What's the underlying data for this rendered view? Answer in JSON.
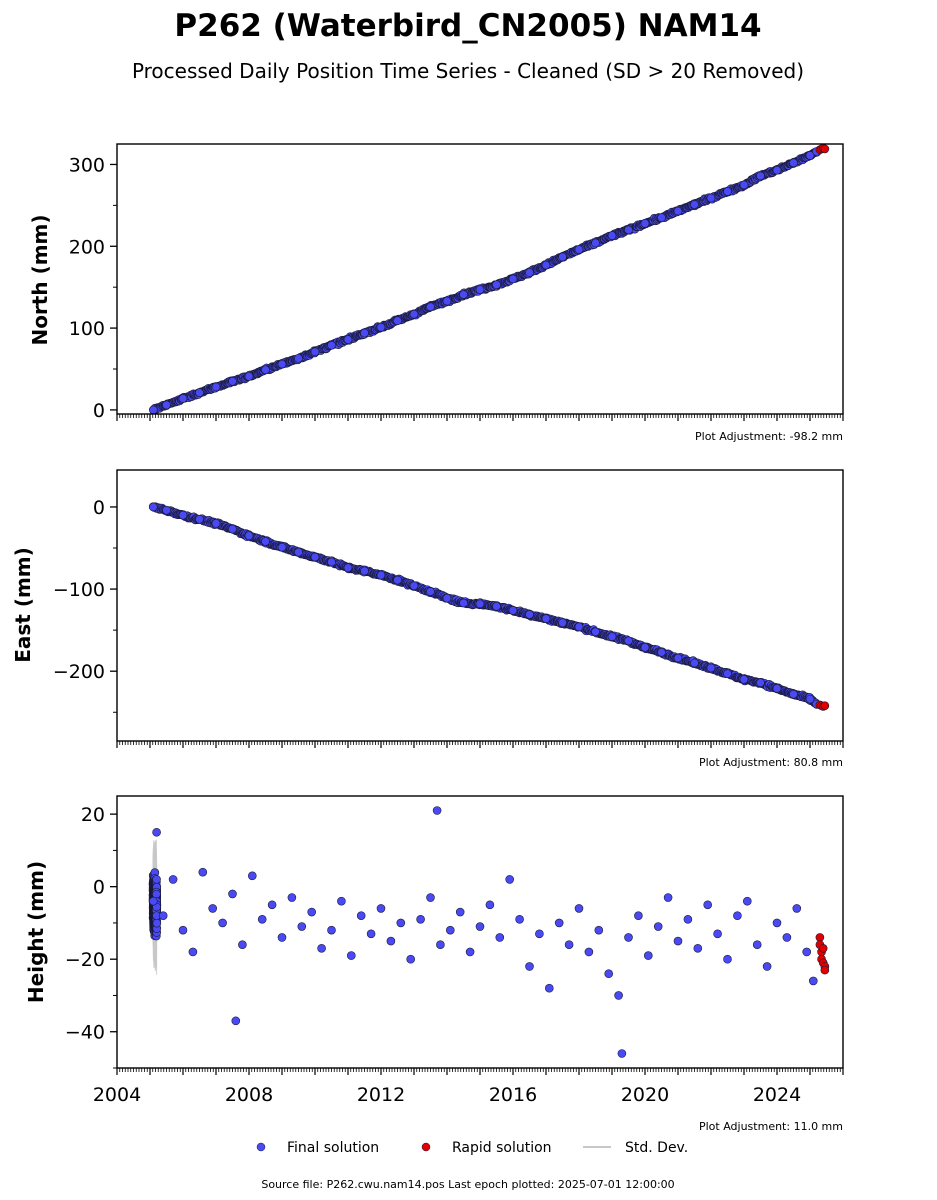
{
  "title": "P262 (Waterbird_CN2005) NAM14",
  "subtitle": "Processed Daily Position Time Series - Cleaned (SD > 20 Removed)",
  "legend": {
    "final_label": "Final solution",
    "rapid_label": "Rapid solution",
    "std_label": "Std. Dev."
  },
  "source_note": "Source file: P262.cwu.nam14.pos  Last epoch plotted: 2025-07-01 12:00:00",
  "colors": {
    "final": "#4a4af4",
    "rapid": "#e00000",
    "std": "#c8c8c8",
    "marker_edge": "#1a1a3a"
  },
  "chart_data": [
    {
      "type": "scatter",
      "panel": "north",
      "ylabel": "North (mm)",
      "adjustment_note": "Plot Adjustment: -98.2 mm",
      "xlim": [
        2004,
        2026
      ],
      "ylim": [
        -5,
        325
      ],
      "xticks": [
        2004,
        2008,
        2012,
        2016,
        2020,
        2024
      ],
      "xtick_labels": [
        "2004",
        "2008",
        "2012",
        "2016",
        "2020",
        "2024"
      ],
      "show_x_tick_labels": false,
      "yticks": [
        0,
        100,
        200,
        300
      ],
      "ytick_labels": [
        "0",
        "100",
        "200",
        "300"
      ],
      "series": [
        {
          "name": "Final solution",
          "x": [
            2005.1,
            2005.5,
            2006.0,
            2006.5,
            2007.0,
            2007.5,
            2008.0,
            2008.5,
            2009.0,
            2009.5,
            2010.0,
            2010.5,
            2011.0,
            2011.5,
            2012.0,
            2012.5,
            2013.0,
            2013.5,
            2014.0,
            2014.5,
            2015.0,
            2015.5,
            2016.0,
            2016.5,
            2017.0,
            2017.5,
            2018.0,
            2018.5,
            2019.0,
            2019.5,
            2020.0,
            2020.5,
            2021.0,
            2021.5,
            2022.0,
            2022.5,
            2023.0,
            2023.5,
            2024.0,
            2024.5,
            2025.0,
            2025.2
          ],
          "y": [
            0,
            6,
            14,
            21,
            28,
            35,
            41,
            49,
            56,
            63,
            71,
            79,
            86,
            94,
            101,
            109,
            117,
            126,
            133,
            141,
            147,
            153,
            160,
            168,
            177,
            187,
            196,
            204,
            213,
            220,
            228,
            235,
            243,
            251,
            259,
            267,
            275,
            286,
            293,
            302,
            311,
            316
          ]
        },
        {
          "name": "Rapid solution",
          "x": [
            2025.3,
            2025.35,
            2025.4,
            2025.45
          ],
          "y": [
            318,
            319,
            320,
            319
          ]
        }
      ]
    },
    {
      "type": "scatter",
      "panel": "east",
      "ylabel": "East (mm)",
      "adjustment_note": "Plot Adjustment: 80.8 mm",
      "xlim": [
        2004,
        2026
      ],
      "ylim": [
        -285,
        45
      ],
      "xticks": [
        2004,
        2008,
        2012,
        2016,
        2020,
        2024
      ],
      "xtick_labels": [
        "2004",
        "2008",
        "2012",
        "2016",
        "2020",
        "2024"
      ],
      "show_x_tick_labels": false,
      "yticks": [
        0,
        -100,
        -200
      ],
      "ytick_labels": [
        "0",
        "−100",
        "−200"
      ],
      "series": [
        {
          "name": "Final solution",
          "x": [
            2005.1,
            2005.5,
            2006.0,
            2006.5,
            2007.0,
            2007.5,
            2008.0,
            2008.5,
            2009.0,
            2009.5,
            2010.0,
            2010.5,
            2011.0,
            2011.5,
            2012.0,
            2012.5,
            2013.0,
            2013.5,
            2014.0,
            2014.5,
            2015.0,
            2015.5,
            2016.0,
            2016.5,
            2017.0,
            2017.5,
            2018.0,
            2018.5,
            2019.0,
            2019.5,
            2020.0,
            2020.5,
            2021.0,
            2021.5,
            2022.0,
            2022.5,
            2023.0,
            2023.5,
            2024.0,
            2024.5,
            2025.0,
            2025.2
          ],
          "y": [
            0,
            -4,
            -10,
            -15,
            -20,
            -27,
            -35,
            -42,
            -49,
            -55,
            -61,
            -67,
            -74,
            -78,
            -83,
            -89,
            -96,
            -103,
            -111,
            -117,
            -118,
            -121,
            -126,
            -131,
            -136,
            -141,
            -146,
            -152,
            -158,
            -163,
            -171,
            -177,
            -184,
            -190,
            -196,
            -203,
            -210,
            -214,
            -221,
            -228,
            -234,
            -240
          ]
        },
        {
          "name": "Rapid solution",
          "x": [
            2025.3,
            2025.35,
            2025.4,
            2025.45
          ],
          "y": [
            -241,
            -242,
            -243,
            -242
          ]
        }
      ]
    },
    {
      "type": "scatter",
      "panel": "height",
      "ylabel": "Height (mm)",
      "adjustment_note": "Plot Adjustment: 11.0 mm",
      "xlim": [
        2004,
        2026
      ],
      "ylim": [
        -50,
        25
      ],
      "xticks": [
        2004,
        2008,
        2012,
        2016,
        2020,
        2024
      ],
      "xtick_labels": [
        "2004",
        "2008",
        "2012",
        "2016",
        "2020",
        "2024"
      ],
      "show_x_tick_labels": true,
      "yticks": [
        20,
        0,
        -20,
        -40
      ],
      "ytick_labels": [
        "20",
        "0",
        "−20",
        "−40"
      ],
      "series": [
        {
          "name": "Final solution",
          "x": [
            2005.1,
            2005.4,
            2005.7,
            2006.0,
            2006.3,
            2006.6,
            2006.9,
            2007.2,
            2007.5,
            2007.8,
            2008.1,
            2008.4,
            2008.7,
            2009.0,
            2009.3,
            2009.6,
            2009.9,
            2010.2,
            2010.5,
            2010.8,
            2011.1,
            2011.4,
            2011.7,
            2012.0,
            2012.3,
            2012.6,
            2012.9,
            2013.2,
            2013.5,
            2013.8,
            2014.1,
            2014.4,
            2014.7,
            2015.0,
            2015.3,
            2015.6,
            2015.9,
            2016.2,
            2016.5,
            2016.8,
            2017.1,
            2017.4,
            2017.7,
            2018.0,
            2018.3,
            2018.6,
            2018.9,
            2019.2,
            2019.5,
            2019.8,
            2020.1,
            2020.4,
            2020.7,
            2021.0,
            2021.3,
            2021.6,
            2021.9,
            2022.2,
            2022.5,
            2022.8,
            2023.1,
            2023.4,
            2023.7,
            2024.0,
            2024.3,
            2024.6,
            2024.9,
            2025.1,
            2007.6,
            2013.7,
            2019.3,
            2005.2
          ],
          "y": [
            -4,
            -8,
            2,
            -12,
            -18,
            4,
            -6,
            -10,
            -2,
            -16,
            3,
            -9,
            -5,
            -14,
            -3,
            -11,
            -7,
            -17,
            -12,
            -4,
            -19,
            -8,
            -13,
            -6,
            -15,
            -10,
            -20,
            -9,
            -3,
            -16,
            -12,
            -7,
            -18,
            -11,
            -5,
            -14,
            2,
            -9,
            -22,
            -13,
            -28,
            -10,
            -16,
            -6,
            -18,
            -12,
            -24,
            -30,
            -14,
            -8,
            -19,
            -11,
            -3,
            -15,
            -9,
            -17,
            -5,
            -13,
            -20,
            -8,
            -4,
            -16,
            -22,
            -10,
            -14,
            -6,
            -18,
            -26,
            -37,
            21,
            -46,
            15
          ]
        },
        {
          "name": "Rapid solution",
          "x": [
            2025.3,
            2025.3,
            2025.35,
            2025.35,
            2025.4,
            2025.4,
            2025.45,
            2025.45
          ],
          "y": [
            -14,
            -16,
            -18,
            -20,
            -17,
            -21,
            -22,
            -23
          ]
        }
      ]
    }
  ]
}
